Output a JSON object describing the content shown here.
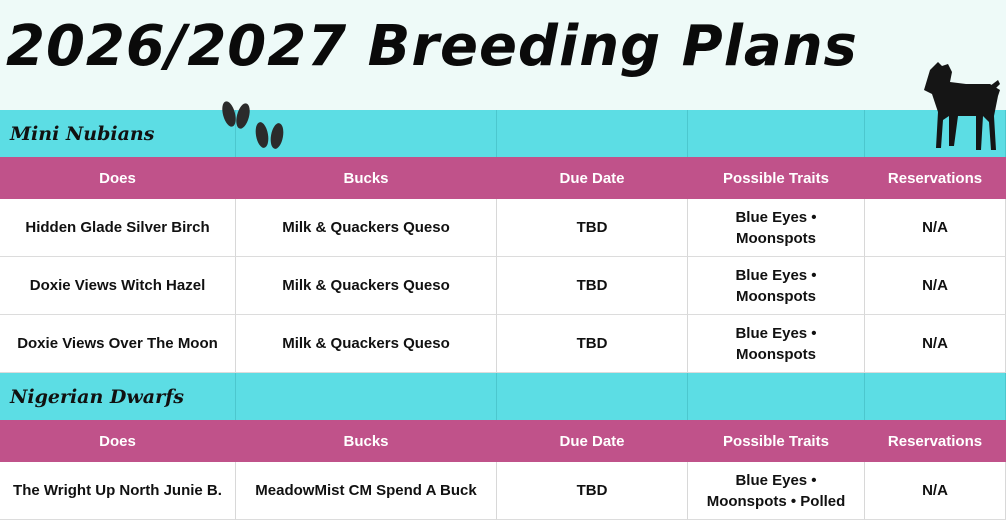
{
  "header": {
    "title": "2026/2027 Breeding Plans"
  },
  "sections": [
    {
      "title": "Mini Nubians",
      "columns": [
        "Does",
        "Bucks",
        "Due Date",
        "Possible Traits",
        "Reservations"
      ],
      "rows": [
        [
          "Hidden Glade Silver Birch",
          "Milk & Quackers Queso",
          "TBD",
          "Blue Eyes • Moonspots",
          "N/A"
        ],
        [
          "Doxie Views Witch Hazel",
          "Milk & Quackers Queso",
          "TBD",
          "Blue Eyes • Moonspots",
          "N/A"
        ],
        [
          "Doxie Views Over The Moon",
          "Milk & Quackers Queso",
          "TBD",
          "Blue Eyes • Moonspots",
          "N/A"
        ]
      ]
    },
    {
      "title": "Nigerian Dwarfs",
      "columns": [
        "Does",
        "Bucks",
        "Due Date",
        "Possible Traits",
        "Reservations"
      ],
      "rows": [
        [
          "The Wright Up North Junie B.",
          "MeadowMist CM Spend A Buck",
          "TBD",
          "Blue Eyes • Moonspots • Polled",
          "N/A"
        ]
      ]
    }
  ]
}
